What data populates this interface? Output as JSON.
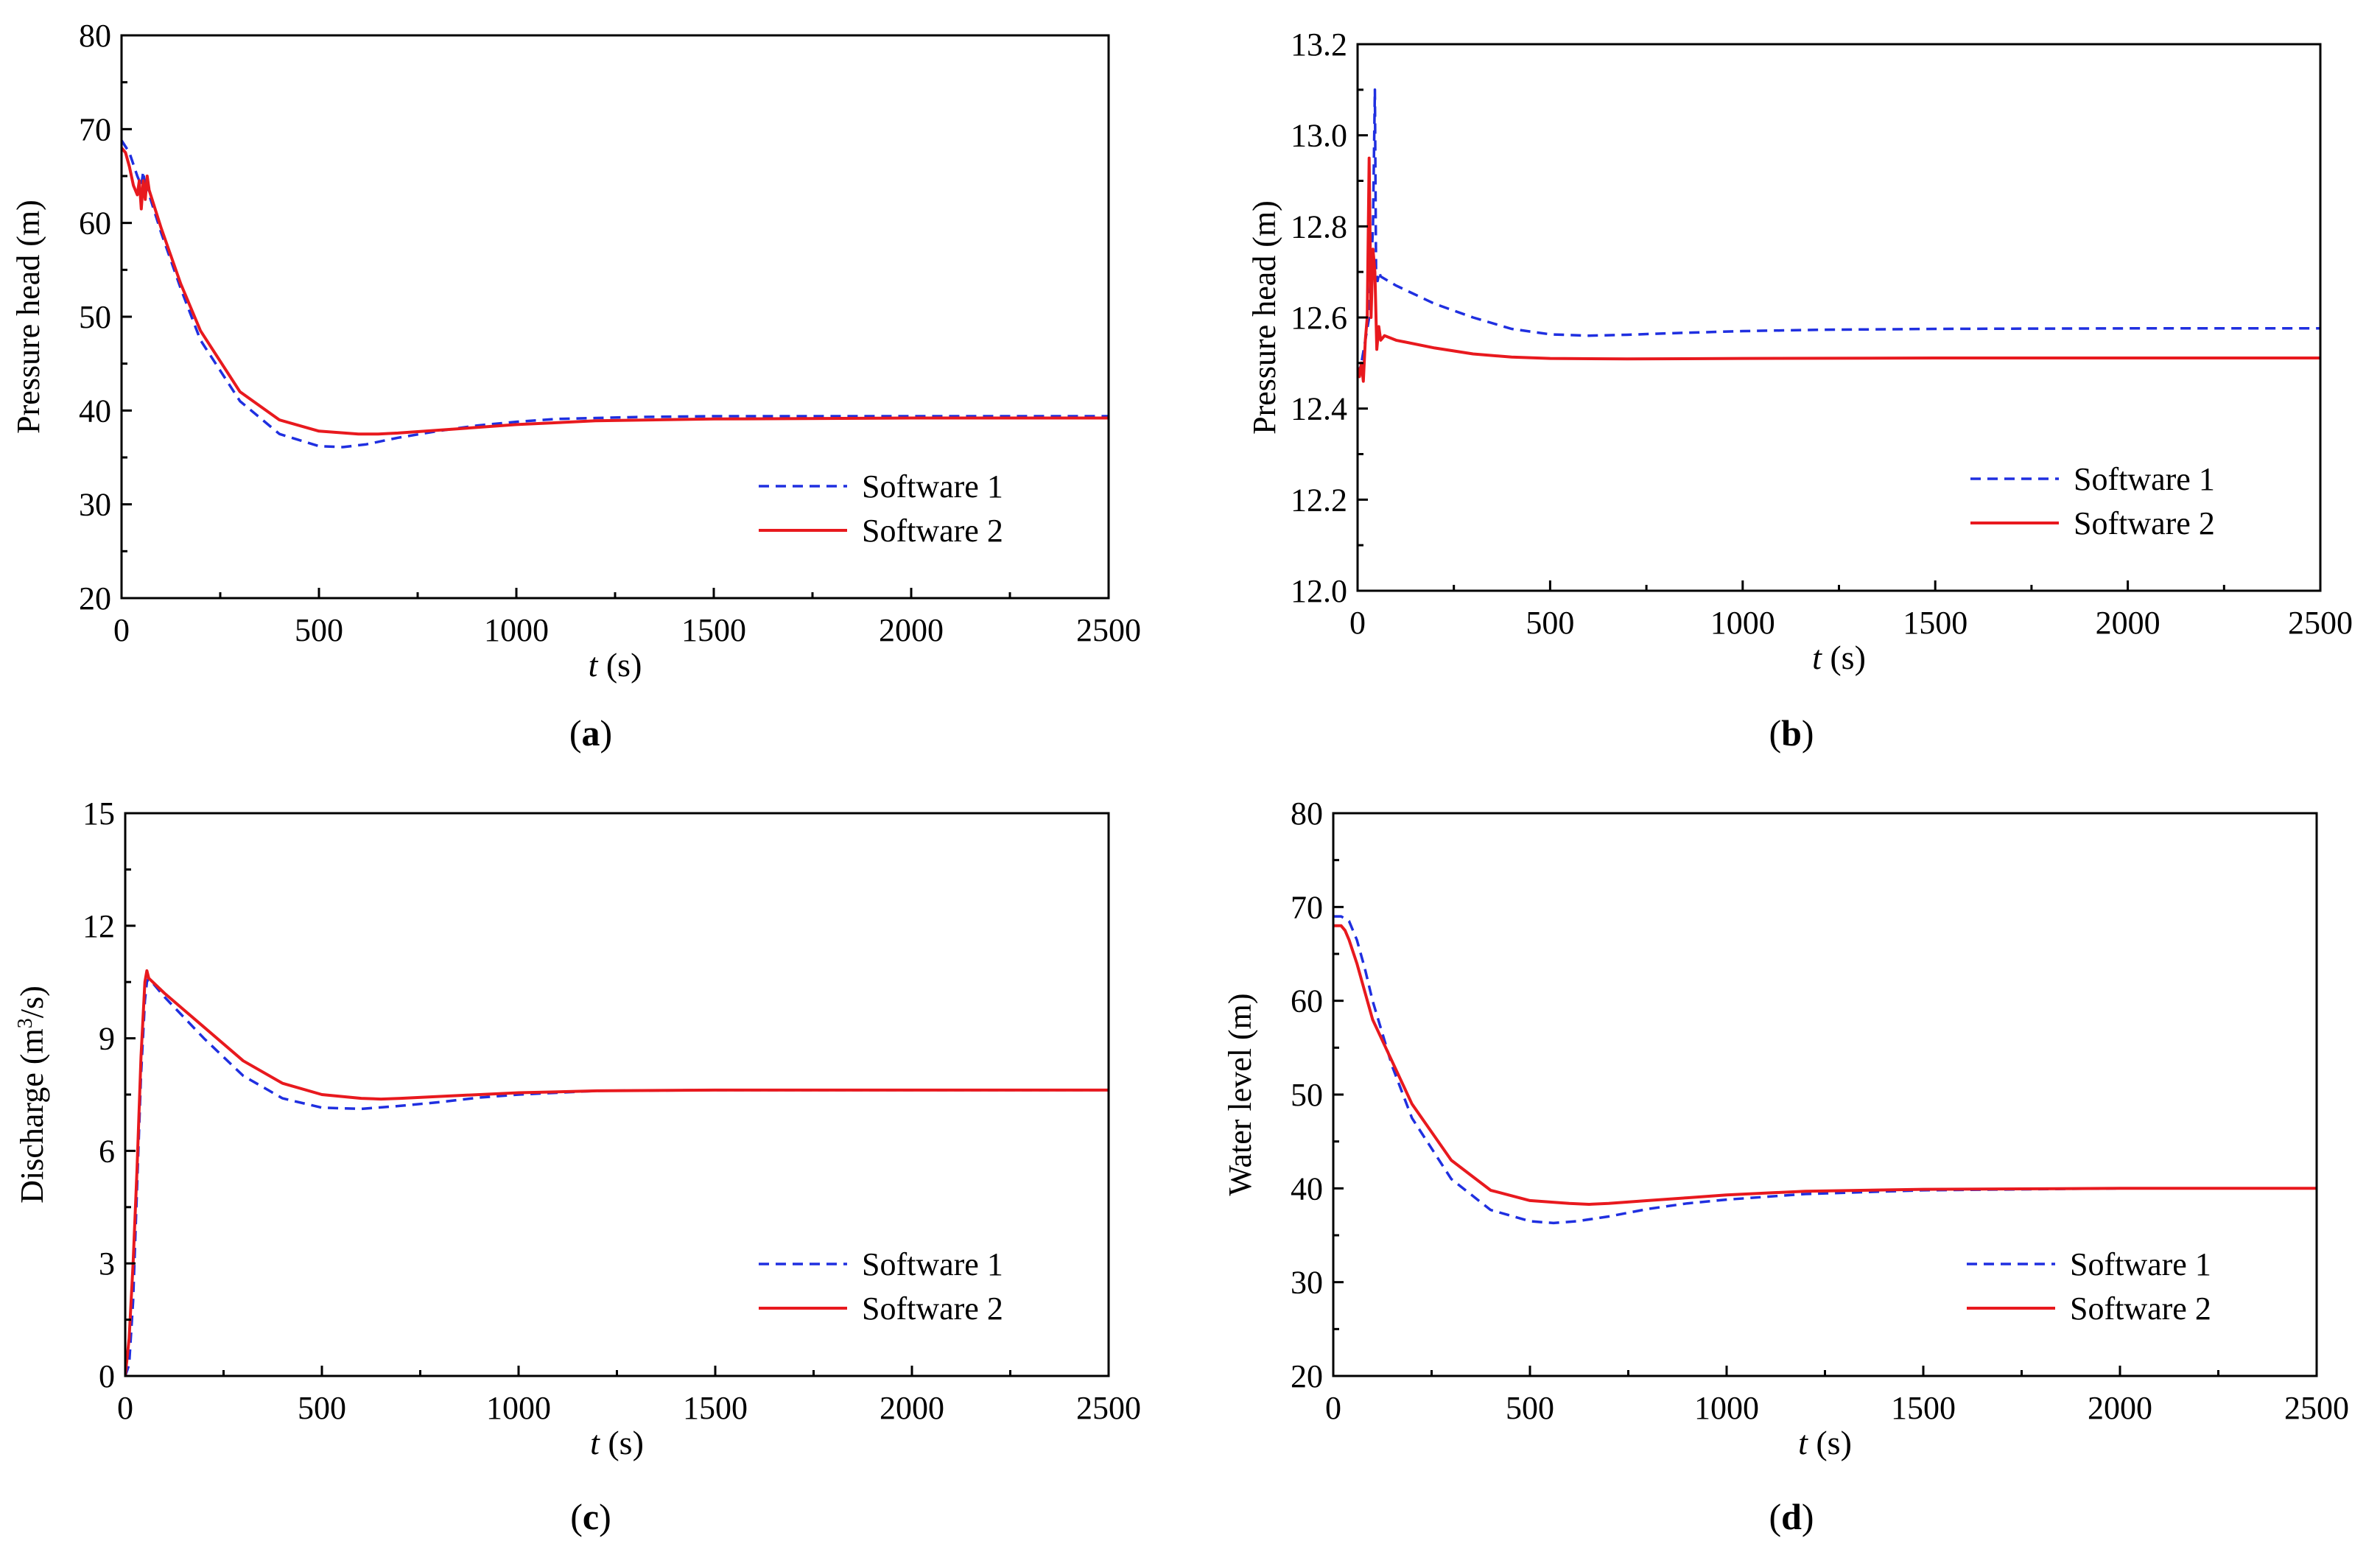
{
  "figure": {
    "legend_labels": [
      "Software 1",
      "Software 2"
    ],
    "series_colors": {
      "software1": "#1f2fe0",
      "software2": "#e8191e"
    }
  },
  "chart_data": [
    {
      "id": "a",
      "panel_label": "a",
      "type": "line",
      "xlabel_italic": "t",
      "xlabel_unit": "(s)",
      "ylabel": "Pressure head (m)",
      "xlim": [
        0,
        2500
      ],
      "ylim": [
        20,
        80
      ],
      "xticks": [
        0,
        500,
        1000,
        1500,
        2000,
        2500
      ],
      "xtick_labels": [
        "0",
        "500",
        "1000",
        "1500",
        "2000",
        "2500"
      ],
      "yticks": [
        20,
        30,
        40,
        50,
        60,
        70,
        80
      ],
      "ytick_labels": [
        "20",
        "30",
        "40",
        "50",
        "60",
        "70",
        "80"
      ],
      "legend": "bottom-right",
      "series": [
        {
          "name": "Software 1",
          "style": "dashed",
          "x": [
            0,
            20,
            40,
            50,
            55,
            60,
            65,
            70,
            100,
            150,
            200,
            300,
            400,
            500,
            560,
            620,
            700,
            800,
            900,
            1000,
            1100,
            1200,
            1300,
            1500,
            1700,
            2000,
            2500
          ],
          "y": [
            68.8,
            67.5,
            65,
            64,
            65.5,
            63.5,
            65,
            63,
            59,
            53,
            47.5,
            41,
            37.5,
            36.2,
            36.1,
            36.4,
            37.1,
            37.8,
            38.4,
            38.8,
            39.1,
            39.2,
            39.3,
            39.4,
            39.4,
            39.4,
            39.4
          ]
        },
        {
          "name": "Software 2",
          "style": "solid",
          "x": [
            0,
            10,
            20,
            30,
            40,
            45,
            50,
            55,
            60,
            65,
            70,
            100,
            150,
            200,
            300,
            400,
            500,
            600,
            650,
            700,
            800,
            900,
            1000,
            1200,
            1500,
            2000,
            2500
          ],
          "y": [
            68,
            67.5,
            66,
            64,
            63,
            64.5,
            61.5,
            64.5,
            62.5,
            65,
            63.5,
            59.5,
            53.5,
            48.5,
            42,
            39,
            37.8,
            37.5,
            37.5,
            37.6,
            37.9,
            38.2,
            38.5,
            38.9,
            39.1,
            39.2,
            39.2
          ]
        }
      ]
    },
    {
      "id": "b",
      "panel_label": "b",
      "type": "line",
      "xlabel_italic": "t",
      "xlabel_unit": "(s)",
      "ylabel": "Pressure head (m)",
      "xlim": [
        0,
        2500
      ],
      "ylim": [
        12.0,
        13.2
      ],
      "xticks": [
        0,
        500,
        1000,
        1500,
        2000,
        2500
      ],
      "xtick_labels": [
        "0",
        "500",
        "1000",
        "1500",
        "2000",
        "2500"
      ],
      "yticks": [
        12.0,
        12.2,
        12.4,
        12.6,
        12.8,
        13.0,
        13.2
      ],
      "ytick_labels": [
        "12.0",
        "12.2",
        "12.4",
        "12.6",
        "12.8",
        "13.0",
        "13.2"
      ],
      "legend": "bottom-right",
      "series": [
        {
          "name": "Software 1",
          "style": "dashed",
          "x": [
            0,
            10,
            20,
            30,
            40,
            45,
            48,
            52,
            56,
            60,
            100,
            200,
            300,
            400,
            500,
            600,
            700,
            800,
            1000,
            1200,
            1500,
            2000,
            2500
          ],
          "y": [
            12.47,
            12.5,
            12.55,
            12.6,
            12.8,
            13.1,
            12.7,
            12.68,
            12.7,
            12.69,
            12.67,
            12.63,
            12.6,
            12.575,
            12.563,
            12.56,
            12.562,
            12.565,
            12.57,
            12.573,
            12.575,
            12.576,
            12.576
          ]
        },
        {
          "name": "Software 2",
          "style": "solid",
          "x": [
            0,
            5,
            10,
            15,
            20,
            25,
            30,
            35,
            40,
            45,
            50,
            55,
            60,
            70,
            100,
            200,
            300,
            400,
            500,
            700,
            1000,
            1500,
            2000,
            2500
          ],
          "y": [
            12.49,
            12.47,
            12.5,
            12.46,
            12.55,
            12.6,
            12.95,
            12.6,
            12.75,
            12.7,
            12.53,
            12.58,
            12.55,
            12.56,
            12.55,
            12.533,
            12.52,
            12.513,
            12.51,
            12.509,
            12.51,
            12.511,
            12.511,
            12.511
          ]
        }
      ]
    },
    {
      "id": "c",
      "panel_label": "c",
      "type": "line",
      "xlabel_italic": "t",
      "xlabel_unit": "(s)",
      "ylabel_main": "Discharge (m",
      "ylabel_sup": "3",
      "ylabel_tail": "/s)",
      "xlim": [
        0,
        2500
      ],
      "ylim": [
        0,
        15
      ],
      "xticks": [
        0,
        500,
        1000,
        1500,
        2000,
        2500
      ],
      "xtick_labels": [
        "0",
        "500",
        "1000",
        "1500",
        "2000",
        "2500"
      ],
      "yticks": [
        0,
        3,
        6,
        9,
        12,
        15
      ],
      "ytick_labels": [
        "0",
        "3",
        "6",
        "9",
        "12",
        "15"
      ],
      "legend": "bottom-right",
      "series": [
        {
          "name": "Software 1",
          "style": "dashed",
          "x": [
            0,
            10,
            20,
            30,
            40,
            50,
            55,
            60,
            100,
            200,
            300,
            400,
            500,
            600,
            700,
            800,
            900,
            1000,
            1200,
            1500,
            2000,
            2500
          ],
          "y": [
            0,
            0.3,
            2,
            5,
            8,
            10,
            10.5,
            10.6,
            10.1,
            9.0,
            8.0,
            7.4,
            7.15,
            7.12,
            7.2,
            7.3,
            7.42,
            7.5,
            7.6,
            7.62,
            7.62,
            7.62
          ]
        },
        {
          "name": "Software 2",
          "style": "solid",
          "x": [
            0,
            10,
            20,
            30,
            40,
            50,
            55,
            60,
            100,
            200,
            300,
            400,
            500,
            600,
            650,
            700,
            800,
            1000,
            1200,
            1500,
            2000,
            2500
          ],
          "y": [
            0,
            1,
            3,
            5.5,
            8.5,
            10.5,
            10.8,
            10.6,
            10.2,
            9.3,
            8.4,
            7.8,
            7.5,
            7.4,
            7.38,
            7.4,
            7.45,
            7.55,
            7.6,
            7.62,
            7.62,
            7.62
          ]
        }
      ]
    },
    {
      "id": "d",
      "panel_label": "d",
      "type": "line",
      "xlabel_italic": "t",
      "xlabel_unit": "(s)",
      "ylabel": "Water level (m)",
      "xlim": [
        0,
        2500
      ],
      "ylim": [
        20,
        80
      ],
      "xticks": [
        0,
        500,
        1000,
        1500,
        2000,
        2500
      ],
      "xtick_labels": [
        "0",
        "500",
        "1000",
        "1500",
        "2000",
        "2500"
      ],
      "yticks": [
        20,
        30,
        40,
        50,
        60,
        70,
        80
      ],
      "ytick_labels": [
        "20",
        "30",
        "40",
        "50",
        "60",
        "70",
        "80"
      ],
      "legend": "bottom-right",
      "series": [
        {
          "name": "Software 1",
          "style": "dashed",
          "x": [
            0,
            20,
            40,
            60,
            80,
            100,
            150,
            200,
            300,
            400,
            500,
            560,
            620,
            700,
            800,
            900,
            1000,
            1200,
            1500,
            2000,
            2500
          ],
          "y": [
            69,
            69,
            68.5,
            66.5,
            63.5,
            60,
            53,
            47.5,
            41,
            37.7,
            36.5,
            36.3,
            36.5,
            37,
            37.8,
            38.4,
            38.8,
            39.4,
            39.8,
            40,
            40
          ]
        },
        {
          "name": "Software 2",
          "style": "solid",
          "x": [
            0,
            10,
            20,
            30,
            40,
            60,
            80,
            100,
            150,
            200,
            300,
            400,
            500,
            600,
            650,
            700,
            800,
            900,
            1000,
            1200,
            1500,
            2000,
            2500
          ],
          "y": [
            68,
            68,
            68,
            67.5,
            66.5,
            64,
            61,
            58,
            53.5,
            49,
            43,
            39.8,
            38.7,
            38.4,
            38.3,
            38.4,
            38.7,
            39,
            39.3,
            39.7,
            39.9,
            40,
            40
          ]
        }
      ]
    }
  ]
}
